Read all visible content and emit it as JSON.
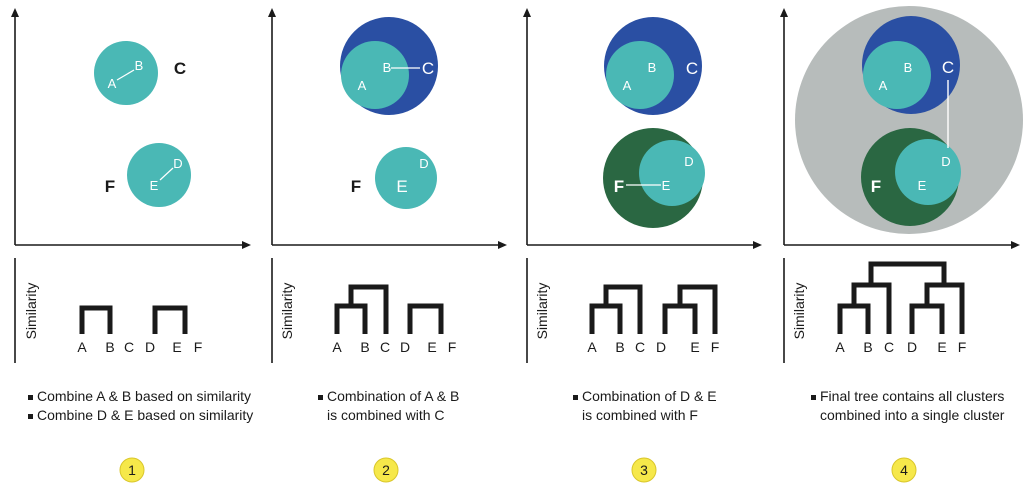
{
  "colors": {
    "teal": "#4ab8b5",
    "blue": "#2a4fa3",
    "green": "#2a6742",
    "gray": "#b7bcbb",
    "ink": "#1a1a1a",
    "badge_fill": "#f6e84a",
    "badge_stroke": "#d9c62a"
  },
  "axis_label": "Similarity",
  "panels": [
    {
      "step": "1",
      "labels": {
        "a": "A",
        "b": "B",
        "c": "C",
        "d": "D",
        "e": "E",
        "f": "F"
      },
      "leaves": [
        "A",
        "B",
        "C",
        "D",
        "E",
        "F"
      ],
      "captions": [
        "Combine A & B based on similarity",
        "Combine D & E based on similarity"
      ]
    },
    {
      "step": "2",
      "labels": {
        "a": "A",
        "b": "B",
        "c": "C",
        "d": "D",
        "e": "E",
        "f": "F"
      },
      "leaves": [
        "A",
        "B",
        "C",
        "D",
        "E",
        "F"
      ],
      "captions": [
        "Combination of A & B",
        "is combined with C"
      ]
    },
    {
      "step": "3",
      "labels": {
        "a": "A",
        "b": "B",
        "c": "C",
        "d": "D",
        "e": "E",
        "f": "F"
      },
      "leaves": [
        "A",
        "B",
        "C",
        "D",
        "E",
        "F"
      ],
      "captions": [
        "Combination of D & E",
        "is combined with F"
      ]
    },
    {
      "step": "4",
      "labels": {
        "a": "A",
        "b": "B",
        "c": "C",
        "d": "D",
        "e": "E",
        "f": "F"
      },
      "leaves": [
        "A",
        "B",
        "C",
        "D",
        "E",
        "F"
      ],
      "captions": [
        "Final tree contains all clusters",
        "combined into a single cluster"
      ]
    }
  ]
}
